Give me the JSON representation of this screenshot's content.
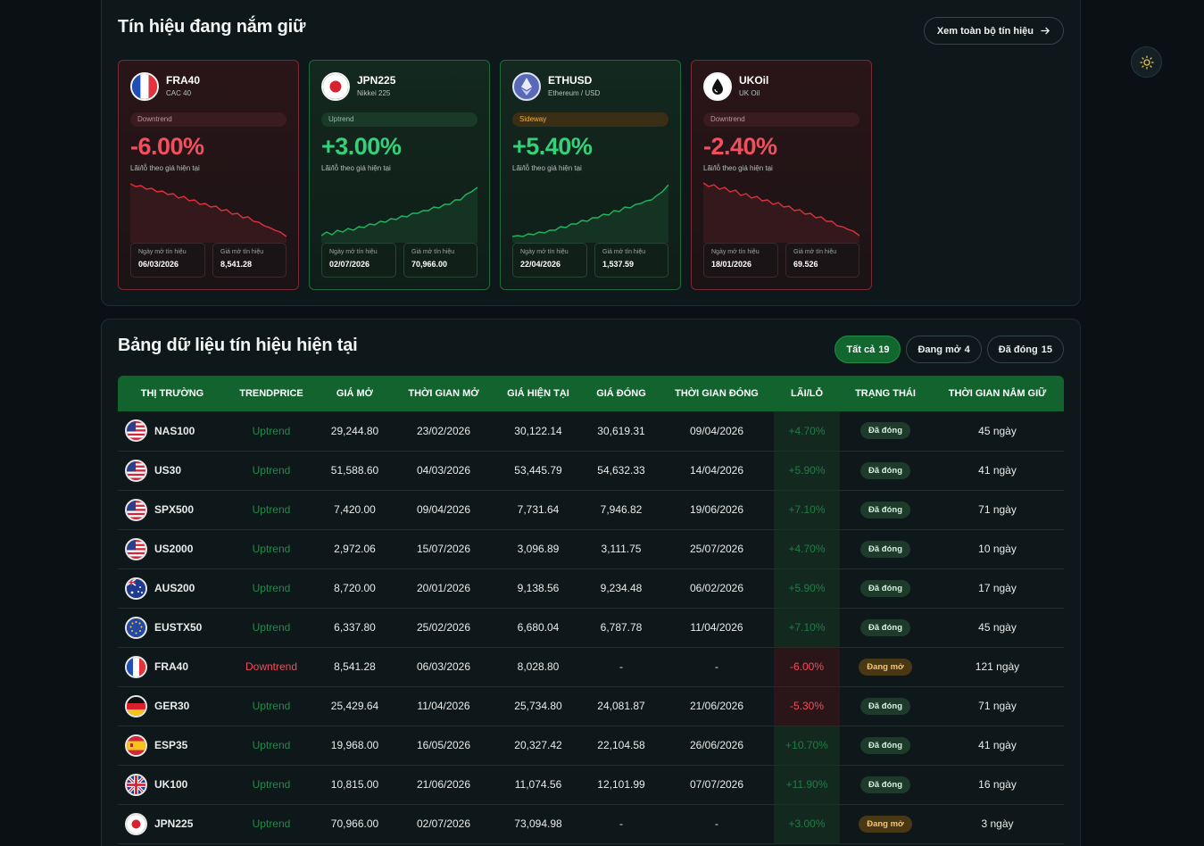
{
  "holding": {
    "title": "Tín hiệu đang nắm giữ",
    "view_all_label": "Xem toàn bộ tín hiệu",
    "pct_label": "Lãi/lỗ theo giá hiện tại",
    "date_label": "Ngày mở tín hiệu",
    "price_label": "Giá mở tín hiệu",
    "cards": [
      {
        "symbol": "FRA40",
        "name": "CAC 40",
        "trend": "Downtrend",
        "pct": "-6.00%",
        "date": "06/03/2026",
        "price": "8,541.28",
        "direction": "down",
        "flag": "fr-flag-icon"
      },
      {
        "symbol": "JPN225",
        "name": "Nikkei 225",
        "trend": "Uptrend",
        "pct": "+3.00%",
        "date": "02/07/2026",
        "price": "70,966.00",
        "direction": "up",
        "flag": "jp-flag-icon"
      },
      {
        "symbol": "ETHUSD",
        "name": "Ethereum / USD",
        "trend": "Sideway",
        "pct": "+5.40%",
        "date": "22/04/2026",
        "price": "1,537.59",
        "direction": "up",
        "flag": "ethereum-icon"
      },
      {
        "symbol": "UKOil",
        "name": "UK Oil",
        "trend": "Downtrend",
        "pct": "-2.40%",
        "date": "18/01/2026",
        "price": "69.526",
        "direction": "down",
        "flag": "oil-drop-icon"
      }
    ]
  },
  "signals": {
    "title": "Bảng dữ liệu tín hiệu hiện tại",
    "filters": [
      {
        "label": "Tất cả",
        "count": "19",
        "active": true
      },
      {
        "label": "Đang mở",
        "count": "4",
        "active": false
      },
      {
        "label": "Đã đóng",
        "count": "15",
        "active": false
      }
    ],
    "columns": [
      "THỊ TRƯỜNG",
      "TRENDPRICE",
      "GIÁ MỞ",
      "THỜI GIAN MỞ",
      "GIÁ HIỆN TẠI",
      "GIÁ ĐÓNG",
      "THỜI GIAN ĐÓNG",
      "LÃI/LỖ",
      "TRẠNG THÁI",
      "THỜI GIAN NẮM GIỮ"
    ],
    "rows": [
      {
        "market": "NAS100",
        "flag": "us",
        "trend": "Uptrend",
        "open": "29,244.80",
        "open_time": "23/02/2026",
        "current": "30,122.14",
        "close": "30,619.31",
        "close_time": "09/04/2026",
        "pl": "+4.70%",
        "status": "Đã đóng",
        "hold": "45 ngày"
      },
      {
        "market": "US30",
        "flag": "us",
        "trend": "Uptrend",
        "open": "51,588.60",
        "open_time": "04/03/2026",
        "current": "53,445.79",
        "close": "54,632.33",
        "close_time": "14/04/2026",
        "pl": "+5.90%",
        "status": "Đã đóng",
        "hold": "41 ngày"
      },
      {
        "market": "SPX500",
        "flag": "us",
        "trend": "Uptrend",
        "open": "7,420.00",
        "open_time": "09/04/2026",
        "current": "7,731.64",
        "close": "7,946.82",
        "close_time": "19/06/2026",
        "pl": "+7.10%",
        "status": "Đã đóng",
        "hold": "71 ngày"
      },
      {
        "market": "US2000",
        "flag": "us",
        "trend": "Uptrend",
        "open": "2,972.06",
        "open_time": "15/07/2026",
        "current": "3,096.89",
        "close": "3,111.75",
        "close_time": "25/07/2026",
        "pl": "+4.70%",
        "status": "Đã đóng",
        "hold": "10 ngày"
      },
      {
        "market": "AUS200",
        "flag": "au",
        "trend": "Uptrend",
        "open": "8,720.00",
        "open_time": "20/01/2026",
        "current": "9,138.56",
        "close": "9,234.48",
        "close_time": "06/02/2026",
        "pl": "+5.90%",
        "status": "Đã đóng",
        "hold": "17 ngày"
      },
      {
        "market": "EUSTX50",
        "flag": "eu",
        "trend": "Uptrend",
        "open": "6,337.80",
        "open_time": "25/02/2026",
        "current": "6,680.04",
        "close": "6,787.78",
        "close_time": "11/04/2026",
        "pl": "+7.10%",
        "status": "Đã đóng",
        "hold": "45 ngày"
      },
      {
        "market": "FRA40",
        "flag": "fr",
        "trend": "Downtrend",
        "open": "8,541.28",
        "open_time": "06/03/2026",
        "current": "8,028.80",
        "close": "-",
        "close_time": "-",
        "pl": "-6.00%",
        "status": "Đang mở",
        "hold": "121 ngày"
      },
      {
        "market": "GER30",
        "flag": "de",
        "trend": "Uptrend",
        "open": "25,429.64",
        "open_time": "11/04/2026",
        "current": "25,734.80",
        "close": "24,081.87",
        "close_time": "21/06/2026",
        "pl": "-5.30%",
        "status": "Đã đóng",
        "hold": "71 ngày"
      },
      {
        "market": "ESP35",
        "flag": "es",
        "trend": "Uptrend",
        "open": "19,968.00",
        "open_time": "16/05/2026",
        "current": "20,327.42",
        "close": "22,104.58",
        "close_time": "26/06/2026",
        "pl": "+10.70%",
        "status": "Đã đóng",
        "hold": "41 ngày"
      },
      {
        "market": "UK100",
        "flag": "gb",
        "trend": "Uptrend",
        "open": "10,815.00",
        "open_time": "21/06/2026",
        "current": "11,074.56",
        "close": "12,101.99",
        "close_time": "07/07/2026",
        "pl": "+11.90%",
        "status": "Đã đóng",
        "hold": "16 ngày"
      },
      {
        "market": "JPN225",
        "flag": "jp",
        "trend": "Uptrend",
        "open": "70,966.00",
        "open_time": "02/07/2026",
        "current": "73,094.98",
        "close": "-",
        "close_time": "-",
        "pl": "+3.00%",
        "status": "Đang mở",
        "hold": "3 ngày"
      }
    ]
  },
  "colors": {
    "accent_green": "#13632f",
    "up": "#34d17a",
    "down": "#f0505d",
    "open_badge": "#f3c773"
  },
  "icons": {
    "theme_toggle": "sun-icon",
    "view_all_arrow": "arrow-right-icon"
  }
}
